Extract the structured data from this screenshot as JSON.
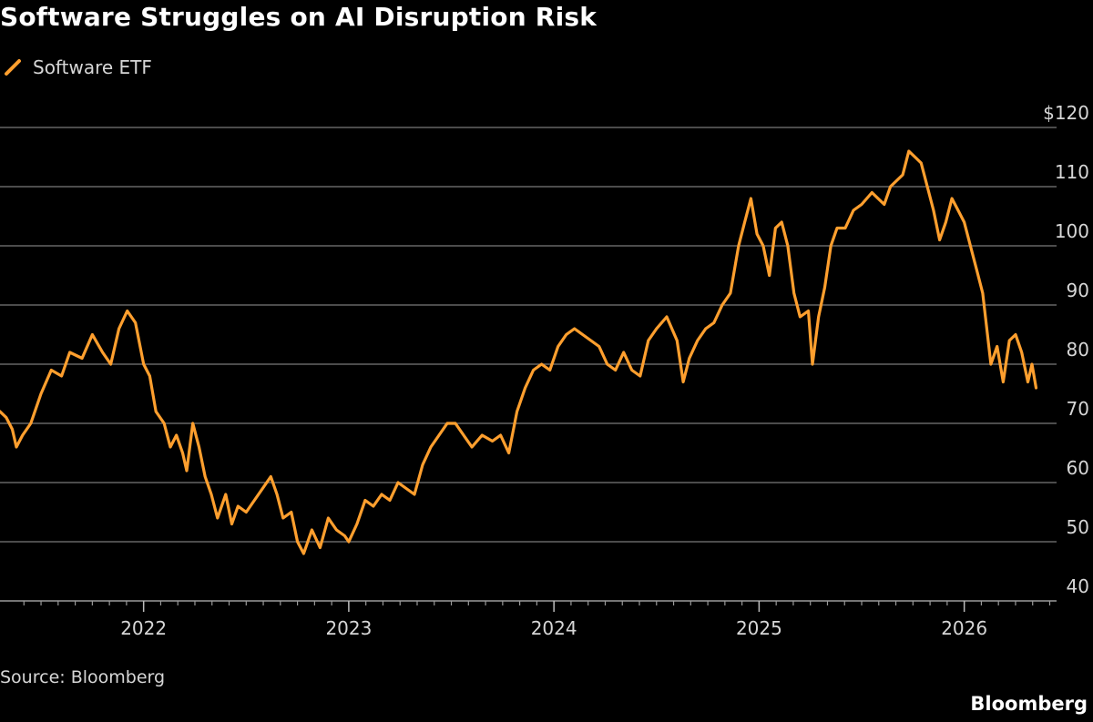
{
  "chart_data": {
    "type": "line",
    "title": "Software Struggles on AI Disruption Risk",
    "legend": [
      "Software ETF"
    ],
    "legend_position": "top-left",
    "y_axis_side": "right",
    "ylim": [
      40,
      120
    ],
    "yticks": [
      {
        "value": 120,
        "label": "$120"
      },
      {
        "value": 110,
        "label": "110"
      },
      {
        "value": 100,
        "label": "100"
      },
      {
        "value": 90,
        "label": "90"
      },
      {
        "value": 80,
        "label": "80"
      },
      {
        "value": 70,
        "label": "70"
      },
      {
        "value": 60,
        "label": "60"
      },
      {
        "value": 50,
        "label": "50"
      },
      {
        "value": 40,
        "label": "40"
      }
    ],
    "xlim": [
      2021.3,
      2026.45
    ],
    "xticks": [
      {
        "value": 2022,
        "label": "2022"
      },
      {
        "value": 2023,
        "label": "2023"
      },
      {
        "value": 2024,
        "label": "2024"
      },
      {
        "value": 2025,
        "label": "2025"
      },
      {
        "value": 2026,
        "label": "2026"
      }
    ],
    "grid": true,
    "series": [
      {
        "name": "Software ETF",
        "color": "#ff9f2e",
        "points": [
          [
            2021.3,
            72
          ],
          [
            2021.33,
            71
          ],
          [
            2021.36,
            69
          ],
          [
            2021.38,
            66
          ],
          [
            2021.41,
            68
          ],
          [
            2021.45,
            70
          ],
          [
            2021.5,
            75
          ],
          [
            2021.55,
            79
          ],
          [
            2021.6,
            78
          ],
          [
            2021.64,
            82
          ],
          [
            2021.7,
            81
          ],
          [
            2021.75,
            85
          ],
          [
            2021.8,
            82
          ],
          [
            2021.84,
            80
          ],
          [
            2021.88,
            86
          ],
          [
            2021.92,
            89
          ],
          [
            2021.96,
            87
          ],
          [
            2022.0,
            80
          ],
          [
            2022.03,
            78
          ],
          [
            2022.06,
            72
          ],
          [
            2022.1,
            70
          ],
          [
            2022.13,
            66
          ],
          [
            2022.16,
            68
          ],
          [
            2022.19,
            65
          ],
          [
            2022.21,
            62
          ],
          [
            2022.24,
            70
          ],
          [
            2022.27,
            66
          ],
          [
            2022.3,
            61
          ],
          [
            2022.33,
            58
          ],
          [
            2022.36,
            54
          ],
          [
            2022.4,
            58
          ],
          [
            2022.43,
            53
          ],
          [
            2022.46,
            56
          ],
          [
            2022.5,
            55
          ],
          [
            2022.54,
            57
          ],
          [
            2022.58,
            59
          ],
          [
            2022.62,
            61
          ],
          [
            2022.65,
            58
          ],
          [
            2022.68,
            54
          ],
          [
            2022.72,
            55
          ],
          [
            2022.75,
            50
          ],
          [
            2022.78,
            48
          ],
          [
            2022.82,
            52
          ],
          [
            2022.86,
            49
          ],
          [
            2022.9,
            54
          ],
          [
            2022.94,
            52
          ],
          [
            2022.98,
            51
          ],
          [
            2023.0,
            50
          ],
          [
            2023.04,
            53
          ],
          [
            2023.08,
            57
          ],
          [
            2023.12,
            56
          ],
          [
            2023.16,
            58
          ],
          [
            2023.2,
            57
          ],
          [
            2023.24,
            60
          ],
          [
            2023.28,
            59
          ],
          [
            2023.32,
            58
          ],
          [
            2023.36,
            63
          ],
          [
            2023.4,
            66
          ],
          [
            2023.44,
            68
          ],
          [
            2023.48,
            70
          ],
          [
            2023.52,
            70
          ],
          [
            2023.56,
            68
          ],
          [
            2023.6,
            66
          ],
          [
            2023.65,
            68
          ],
          [
            2023.7,
            67
          ],
          [
            2023.74,
            68
          ],
          [
            2023.78,
            65
          ],
          [
            2023.82,
            72
          ],
          [
            2023.86,
            76
          ],
          [
            2023.9,
            79
          ],
          [
            2023.94,
            80
          ],
          [
            2023.98,
            79
          ],
          [
            2024.02,
            83
          ],
          [
            2024.06,
            85
          ],
          [
            2024.1,
            86
          ],
          [
            2024.14,
            85
          ],
          [
            2024.18,
            84
          ],
          [
            2024.22,
            83
          ],
          [
            2024.26,
            80
          ],
          [
            2024.3,
            79
          ],
          [
            2024.34,
            82
          ],
          [
            2024.38,
            79
          ],
          [
            2024.42,
            78
          ],
          [
            2024.46,
            84
          ],
          [
            2024.5,
            86
          ],
          [
            2024.55,
            88
          ],
          [
            2024.6,
            84
          ],
          [
            2024.63,
            77
          ],
          [
            2024.66,
            81
          ],
          [
            2024.7,
            84
          ],
          [
            2024.74,
            86
          ],
          [
            2024.78,
            87
          ],
          [
            2024.82,
            90
          ],
          [
            2024.86,
            92
          ],
          [
            2024.9,
            100
          ],
          [
            2024.93,
            104
          ],
          [
            2024.96,
            108
          ],
          [
            2024.99,
            102
          ],
          [
            2025.02,
            100
          ],
          [
            2025.05,
            95
          ],
          [
            2025.08,
            103
          ],
          [
            2025.11,
            104
          ],
          [
            2025.14,
            100
          ],
          [
            2025.17,
            92
          ],
          [
            2025.2,
            88
          ],
          [
            2025.24,
            89
          ],
          [
            2025.26,
            80
          ],
          [
            2025.29,
            88
          ],
          [
            2025.32,
            93
          ],
          [
            2025.35,
            100
          ],
          [
            2025.38,
            103
          ],
          [
            2025.42,
            103
          ],
          [
            2025.46,
            106
          ],
          [
            2025.5,
            107
          ],
          [
            2025.55,
            109
          ],
          [
            2025.58,
            108
          ],
          [
            2025.61,
            107
          ],
          [
            2025.64,
            110
          ],
          [
            2025.67,
            111
          ],
          [
            2025.7,
            112
          ],
          [
            2025.73,
            116
          ],
          [
            2025.76,
            115
          ],
          [
            2025.79,
            114
          ],
          [
            2025.82,
            110
          ],
          [
            2025.85,
            106
          ],
          [
            2025.88,
            101
          ],
          [
            2025.91,
            104
          ],
          [
            2025.94,
            108
          ],
          [
            2025.97,
            106
          ],
          [
            2026.0,
            104
          ],
          [
            2026.03,
            100
          ],
          [
            2026.06,
            96
          ],
          [
            2026.09,
            92
          ],
          [
            2026.11,
            86
          ],
          [
            2026.13,
            80
          ],
          [
            2026.16,
            83
          ],
          [
            2026.19,
            77
          ],
          [
            2026.22,
            84
          ],
          [
            2026.25,
            85
          ],
          [
            2026.28,
            82
          ],
          [
            2026.31,
            77
          ],
          [
            2026.33,
            80
          ],
          [
            2026.35,
            76
          ]
        ]
      }
    ],
    "source": "Source: Bloomberg",
    "brand": "Bloomberg"
  }
}
